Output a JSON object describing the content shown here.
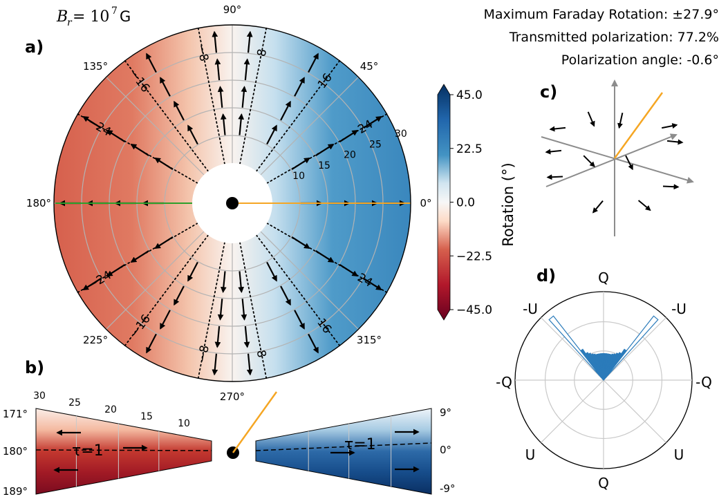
{
  "header": {
    "field_label": "B_r = 10^7 G",
    "field_symbol": "B",
    "field_sub": "r",
    "field_eq": " = 10",
    "field_exp": "7",
    "field_unit": "G",
    "max_rotation": "Maximum Faraday Rotation: ±27.9°",
    "transmitted": "Transmitted polarization:  77.2%",
    "pol_angle": "Polarization angle: -0.6°"
  },
  "panels": {
    "a": "a)",
    "b": "b)",
    "c": "c)",
    "d": "d)"
  },
  "colors": {
    "negative_max": "#67001f",
    "negative": "#d6604d",
    "neutral": "#f7f7f7",
    "positive": "#4393c3",
    "positive_max": "#053061",
    "polarization_line": "#f5a623",
    "green_line": "#2ca02c",
    "axis_gray": "#8c8c8c",
    "hist_fill": "#2b7bba"
  },
  "chart_data": [
    {
      "id": "a",
      "type": "heatmap",
      "projection": "polar",
      "angle_ticks": [
        "0°",
        "45°",
        "90°",
        "135°",
        "180°",
        "225°",
        "270°",
        "315°"
      ],
      "angle_values": [
        0,
        45,
        90,
        135,
        180,
        225,
        270,
        315
      ],
      "radial_ticks": [
        "10",
        "15",
        "20",
        "25",
        "30"
      ],
      "radial_values": [
        10,
        15,
        20,
        25,
        30
      ],
      "contour_levels": [
        "-24",
        "-16",
        "-8",
        "8",
        "16",
        "24"
      ],
      "contour_angles_upper": [
        150,
        127,
        101,
        79,
        53,
        30
      ],
      "contour_angles_lower": [
        210,
        233,
        259,
        281,
        307,
        330
      ],
      "arrow_radii": [
        12,
        17,
        22,
        27
      ],
      "arrow_angles": [
        0,
        30,
        60,
        84,
        96,
        120,
        150,
        180,
        210,
        240,
        264,
        276,
        300,
        330
      ],
      "colorbar": {
        "label": "Rotation (°)",
        "ticks": [
          "45.0",
          "22.5",
          "0.0",
          "−22.5",
          "−45.0"
        ],
        "range": [
          -45,
          45
        ]
      }
    },
    {
      "id": "b",
      "type": "heatmap",
      "radial_ticks": [
        "30",
        "25",
        "20",
        "15",
        "10"
      ],
      "left_angle_ticks": [
        "171°",
        "180°",
        "189°"
      ],
      "right_angle_ticks": [
        "9°",
        "0°",
        "-9°"
      ],
      "tau_label": "τ=1"
    },
    {
      "id": "c",
      "type": "scatter",
      "description_free": true,
      "polarization_angle": 57
    },
    {
      "id": "d",
      "type": "bar",
      "projection": "polar",
      "angle_labels": [
        "Q",
        "-U",
        "-Q",
        "U",
        "Q",
        "U",
        "-Q",
        "-U"
      ],
      "radial_grid": [
        0.33,
        0.66,
        1.0
      ],
      "histogram_angles": [
        -40,
        -36,
        -32,
        -28,
        -24,
        -20,
        -16,
        -12,
        -8,
        -4,
        0,
        4,
        8,
        12,
        16,
        20,
        24,
        28,
        32,
        36,
        40
      ],
      "histogram_values": [
        0.92,
        0.42,
        0.36,
        0.34,
        0.32,
        0.31,
        0.3,
        0.3,
        0.3,
        0.3,
        0.3,
        0.3,
        0.3,
        0.3,
        0.3,
        0.31,
        0.32,
        0.34,
        0.36,
        0.42,
        0.92
      ]
    }
  ]
}
